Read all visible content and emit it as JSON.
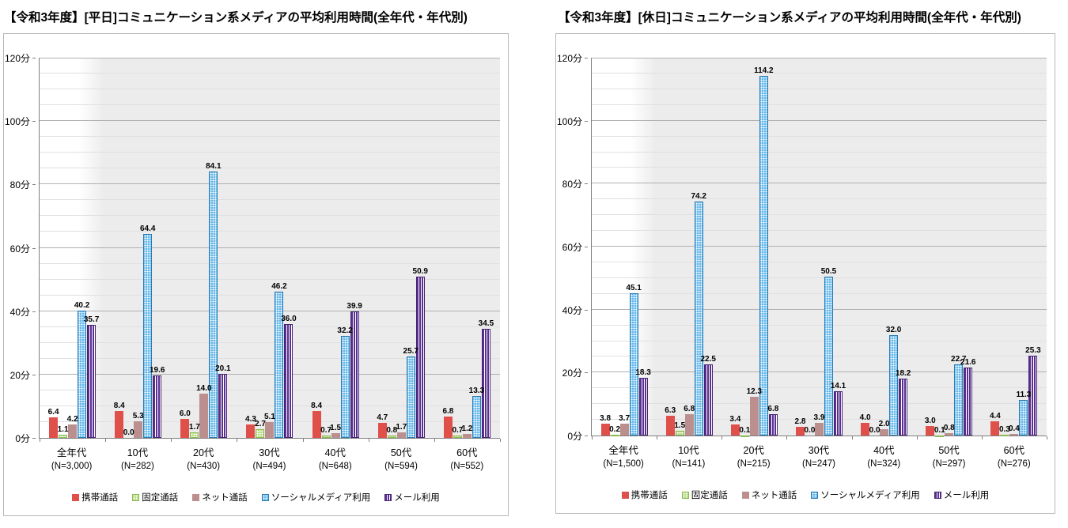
{
  "colors": {
    "plot_background": "#ececec",
    "plot_highlight": "#ffffff",
    "major_gridline": "#b0b0b0",
    "minor_gridline": "#e0e0e0",
    "axis_line": "#7f7f7f"
  },
  "chart_data": [
    {
      "type": "bar",
      "title": "【令和3年度】[平日]コミュニケーション系メディアの平均利用時間(全年代・年代別)",
      "ylim": [
        0,
        120
      ],
      "y_major_step": 20,
      "y_minor_step": 5,
      "y_tick_suffix": "分",
      "y_tick_labels": [
        "0分",
        "20分",
        "40分",
        "60分",
        "80分",
        "100分",
        "120分"
      ],
      "grid": true,
      "legend_position": "bottom",
      "categories": [
        "全年代",
        "10代",
        "20代",
        "30代",
        "40代",
        "50代",
        "60代"
      ],
      "category_n_labels": [
        "(N=3,000)",
        "(N=282)",
        "(N=430)",
        "(N=494)",
        "(N=648)",
        "(N=594)",
        "(N=552)"
      ],
      "series": [
        {
          "name": "携帯通話",
          "color": "#E0504B",
          "border": "#E0504B",
          "pattern": "solid",
          "values": [
            "6.4",
            "8.4",
            "6.0",
            "4.3",
            "8.4",
            "4.7",
            "6.8"
          ]
        },
        {
          "name": "固定通話",
          "color": "#A6D46A",
          "border": "#8CBA52",
          "pattern": "white-dots",
          "values": [
            "1.1",
            "0.0",
            "1.7",
            "2.7",
            "0.7",
            "0.8",
            "0.7"
          ]
        },
        {
          "name": "ネット通話",
          "color": "#BC8F8F",
          "border": "#BC8F8F",
          "pattern": "solid",
          "values": [
            "4.2",
            "5.3",
            "14.0",
            "5.1",
            "1.5",
            "1.7",
            "1.2"
          ]
        },
        {
          "name": "ソーシャルメディア利用",
          "color": "#3EA6E6",
          "border": "#2B7CB3",
          "pattern": "white-dots",
          "values": [
            "40.2",
            "64.4",
            "84.1",
            "46.2",
            "32.2",
            "25.7",
            "13.3"
          ]
        },
        {
          "name": "メール利用",
          "color": "#5A2F92",
          "border": "#46246F",
          "pattern": "white-stripes",
          "values": [
            "35.7",
            "19.6",
            "20.1",
            "36.0",
            "39.9",
            "50.9",
            "34.5"
          ]
        }
      ]
    },
    {
      "type": "bar",
      "title": "【令和3年度】[休日]コミュニケーション系メディアの平均利用時間(全年代・年代別)",
      "ylim": [
        0,
        120
      ],
      "y_major_step": 20,
      "y_minor_step": 5,
      "y_tick_suffix": "分",
      "y_tick_labels": [
        "0分",
        "20分",
        "40分",
        "60分",
        "80分",
        "100分",
        "120分"
      ],
      "grid": true,
      "legend_position": "bottom",
      "categories": [
        "全年代",
        "10代",
        "20代",
        "30代",
        "40代",
        "50代",
        "60代"
      ],
      "category_n_labels": [
        "(N=1,500)",
        "(N=141)",
        "(N=215)",
        "(N=247)",
        "(N=324)",
        "(N=297)",
        "(N=276)"
      ],
      "series": [
        {
          "name": "携帯通話",
          "color": "#E0504B",
          "border": "#E0504B",
          "pattern": "solid",
          "values": [
            "3.8",
            "6.3",
            "3.4",
            "2.8",
            "4.0",
            "3.0",
            "4.4"
          ]
        },
        {
          "name": "固定通話",
          "color": "#A6D46A",
          "border": "#8CBA52",
          "pattern": "white-dots",
          "values": [
            "0.2",
            "1.5",
            "0.1",
            "0.0",
            "0.0",
            "0.1",
            "0.3"
          ]
        },
        {
          "name": "ネット通話",
          "color": "#BC8F8F",
          "border": "#BC8F8F",
          "pattern": "solid",
          "values": [
            "3.7",
            "6.8",
            "12.3",
            "3.9",
            "2.0",
            "0.8",
            "0.4"
          ]
        },
        {
          "name": "ソーシャルメディア利用",
          "color": "#3EA6E6",
          "border": "#2B7CB3",
          "pattern": "white-dots",
          "values": [
            "45.1",
            "74.2",
            "114.2",
            "50.5",
            "32.0",
            "22.7",
            "11.3"
          ]
        },
        {
          "name": "メール利用",
          "color": "#5A2F92",
          "border": "#46246F",
          "pattern": "white-stripes",
          "values": [
            "18.3",
            "22.5",
            "6.8",
            "14.1",
            "18.2",
            "21.6",
            "25.3"
          ]
        }
      ]
    }
  ]
}
